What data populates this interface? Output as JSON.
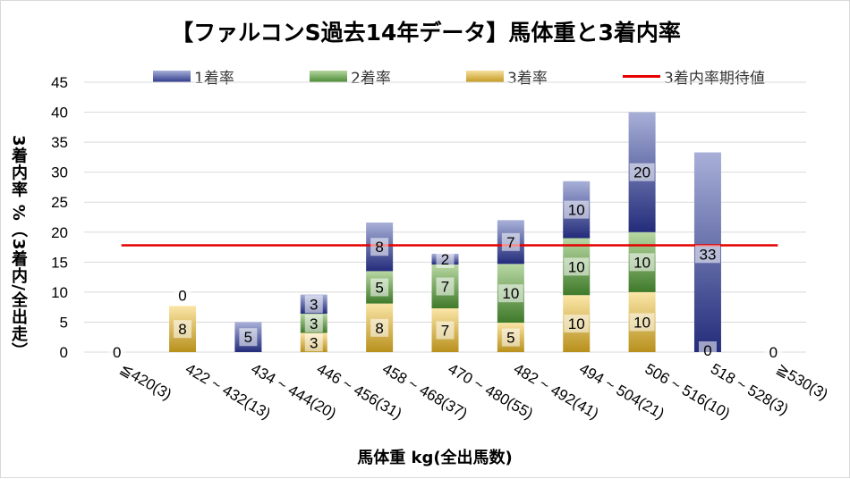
{
  "chart_data": {
    "type": "bar",
    "title": "【ファルコンS過去14年データ】馬体重と3着内率",
    "xlabel": "馬体重 kg(全出馬数)",
    "ylabel": "3着内率 %（3着内/全出走）",
    "ylim": [
      0,
      45
    ],
    "yticks": [
      0,
      5,
      10,
      15,
      20,
      25,
      30,
      35,
      40,
      45
    ],
    "grid": true,
    "legend_position": "top",
    "categories": [
      "≦420(3)",
      "422 ~ 432(13)",
      "434 ~ 444(20)",
      "446 ~ 456(31)",
      "458 ~ 468(37)",
      "470 ~ 480(55)",
      "482 ~ 492(41)",
      "494 ~ 504(21)",
      "506 ~ 516(10)",
      "518 ~ 528(3)",
      "≧530(3)"
    ],
    "series": [
      {
        "name": "3着率",
        "color": "#c9a227",
        "values": [
          0,
          7.7,
          0,
          3.2,
          8.1,
          7.3,
          4.9,
          9.5,
          10,
          0,
          0
        ],
        "labels": [
          "",
          "8",
          "",
          "3",
          "8",
          "7",
          "5",
          "10",
          "10",
          "",
          ""
        ]
      },
      {
        "name": "2着率",
        "color": "#5a9e3e",
        "values": [
          0,
          0,
          0,
          3.2,
          5.4,
          7.3,
          9.8,
          9.5,
          10,
          0,
          0
        ],
        "labels": [
          "",
          "",
          "",
          "3",
          "5",
          "7",
          "10",
          "10",
          "10",
          "",
          ""
        ]
      },
      {
        "name": "1着率",
        "color": "#2e3a8c",
        "values": [
          0,
          0,
          5,
          3.2,
          8.1,
          1.8,
          7.3,
          9.5,
          20,
          33.3,
          0
        ],
        "labels": [
          "0",
          "0",
          "5",
          "3",
          "8",
          "2",
          "7",
          "10",
          "20",
          "33",
          "0"
        ]
      }
    ],
    "label_zero_below": [
      false,
      true,
      true,
      false,
      false,
      false,
      false,
      false,
      false,
      false,
      false
    ],
    "bottom_zero_label": [
      false,
      false,
      false,
      false,
      false,
      false,
      false,
      false,
      false,
      true,
      false
    ],
    "reference_line": {
      "name": "3着内率期待値",
      "value": 17.8,
      "color": "#e60000"
    }
  },
  "legend": {
    "items": [
      {
        "label": "1着率",
        "color": "#2e3a8c"
      },
      {
        "label": "2着率",
        "color": "#5a9e3e"
      },
      {
        "label": "3着率",
        "color": "#c9a227"
      },
      {
        "label": "3着内率期待値",
        "color": "#e60000"
      }
    ]
  }
}
